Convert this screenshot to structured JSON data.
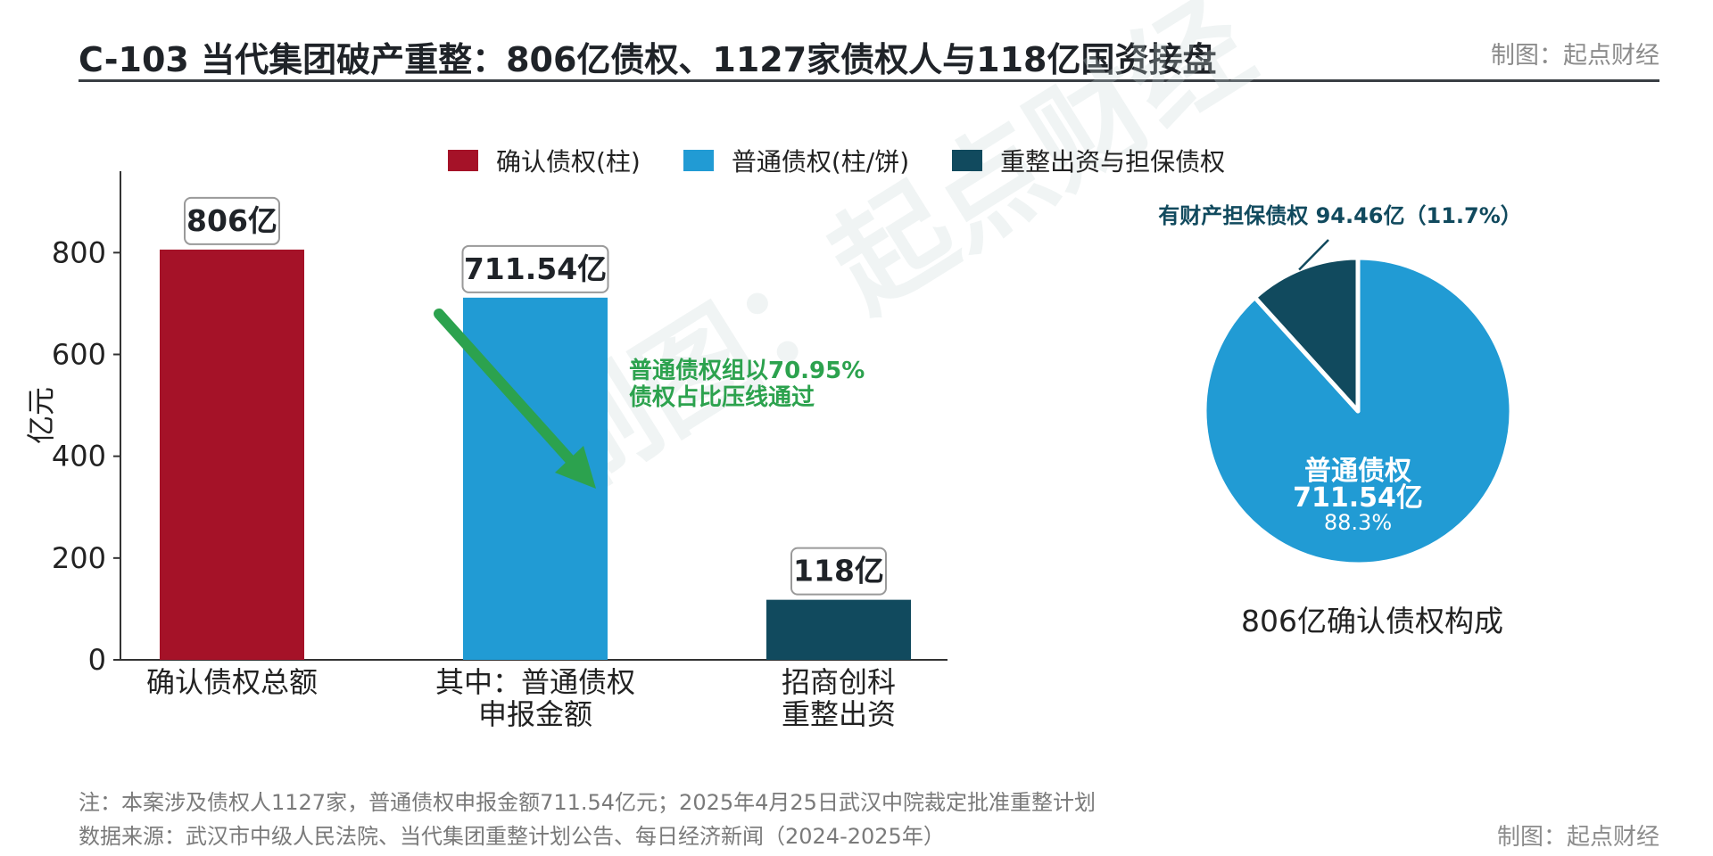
{
  "header": {
    "title": "C-103 当代集团破产重整：806亿债权、1127家债权人与118亿国资接盘",
    "credit": "制图：起点财经"
  },
  "watermark": "制图：起点财经",
  "colors": {
    "confirmed": "#a51228",
    "ordinary": "#219bd4",
    "restructure": "#114a5e",
    "annotation": "#2ca24e",
    "axis": "#333333"
  },
  "chart_data": [
    {
      "type": "bar",
      "ylabel": "亿元",
      "ylim": [
        0,
        960
      ],
      "yticks": [
        0,
        200,
        400,
        600,
        800
      ],
      "categories": [
        {
          "line1": "确认债权总额",
          "line2": ""
        },
        {
          "line1": "其中：普通债权",
          "line2": "申报金额"
        },
        {
          "line1": "招商创科",
          "line2": "重整出资"
        }
      ],
      "values": [
        806,
        711.54,
        118
      ],
      "value_labels": [
        "806亿",
        "711.54亿",
        "118亿"
      ],
      "colors": [
        "#a51228",
        "#219bd4",
        "#114a5e"
      ],
      "legend": [
        {
          "label": "确认债权(柱)",
          "color": "#a51228"
        },
        {
          "label": "普通债权(柱/饼)",
          "color": "#219bd4"
        },
        {
          "label": "重整出资与担保债权",
          "color": "#114a5e"
        }
      ],
      "legend_position": "top-center",
      "annotation": {
        "line1": "普通债权组以70.95%",
        "line2": "债权占比压线通过",
        "arrow": "down-right"
      }
    },
    {
      "type": "pie",
      "title": "806亿确认债权构成",
      "slices": [
        {
          "name": "普通债权",
          "value": 711.54,
          "value_label": "711.54亿",
          "percent_label": "88.3%",
          "color": "#219bd4"
        },
        {
          "name": "有财产担保债权",
          "value": 94.46,
          "callout": "有财产担保债权 94.46亿（11.7%）",
          "color": "#114a5e"
        }
      ]
    }
  ],
  "footer": {
    "note": "注：本案涉及债权人1127家，普通债权申报金额711.54亿元；2025年4月25日武汉中院裁定批准重整计划",
    "source": "数据来源：武汉市中级人民法院、当代集团重整计划公告、每日经济新闻（2024-2025年）",
    "credit": "制图：起点财经"
  }
}
